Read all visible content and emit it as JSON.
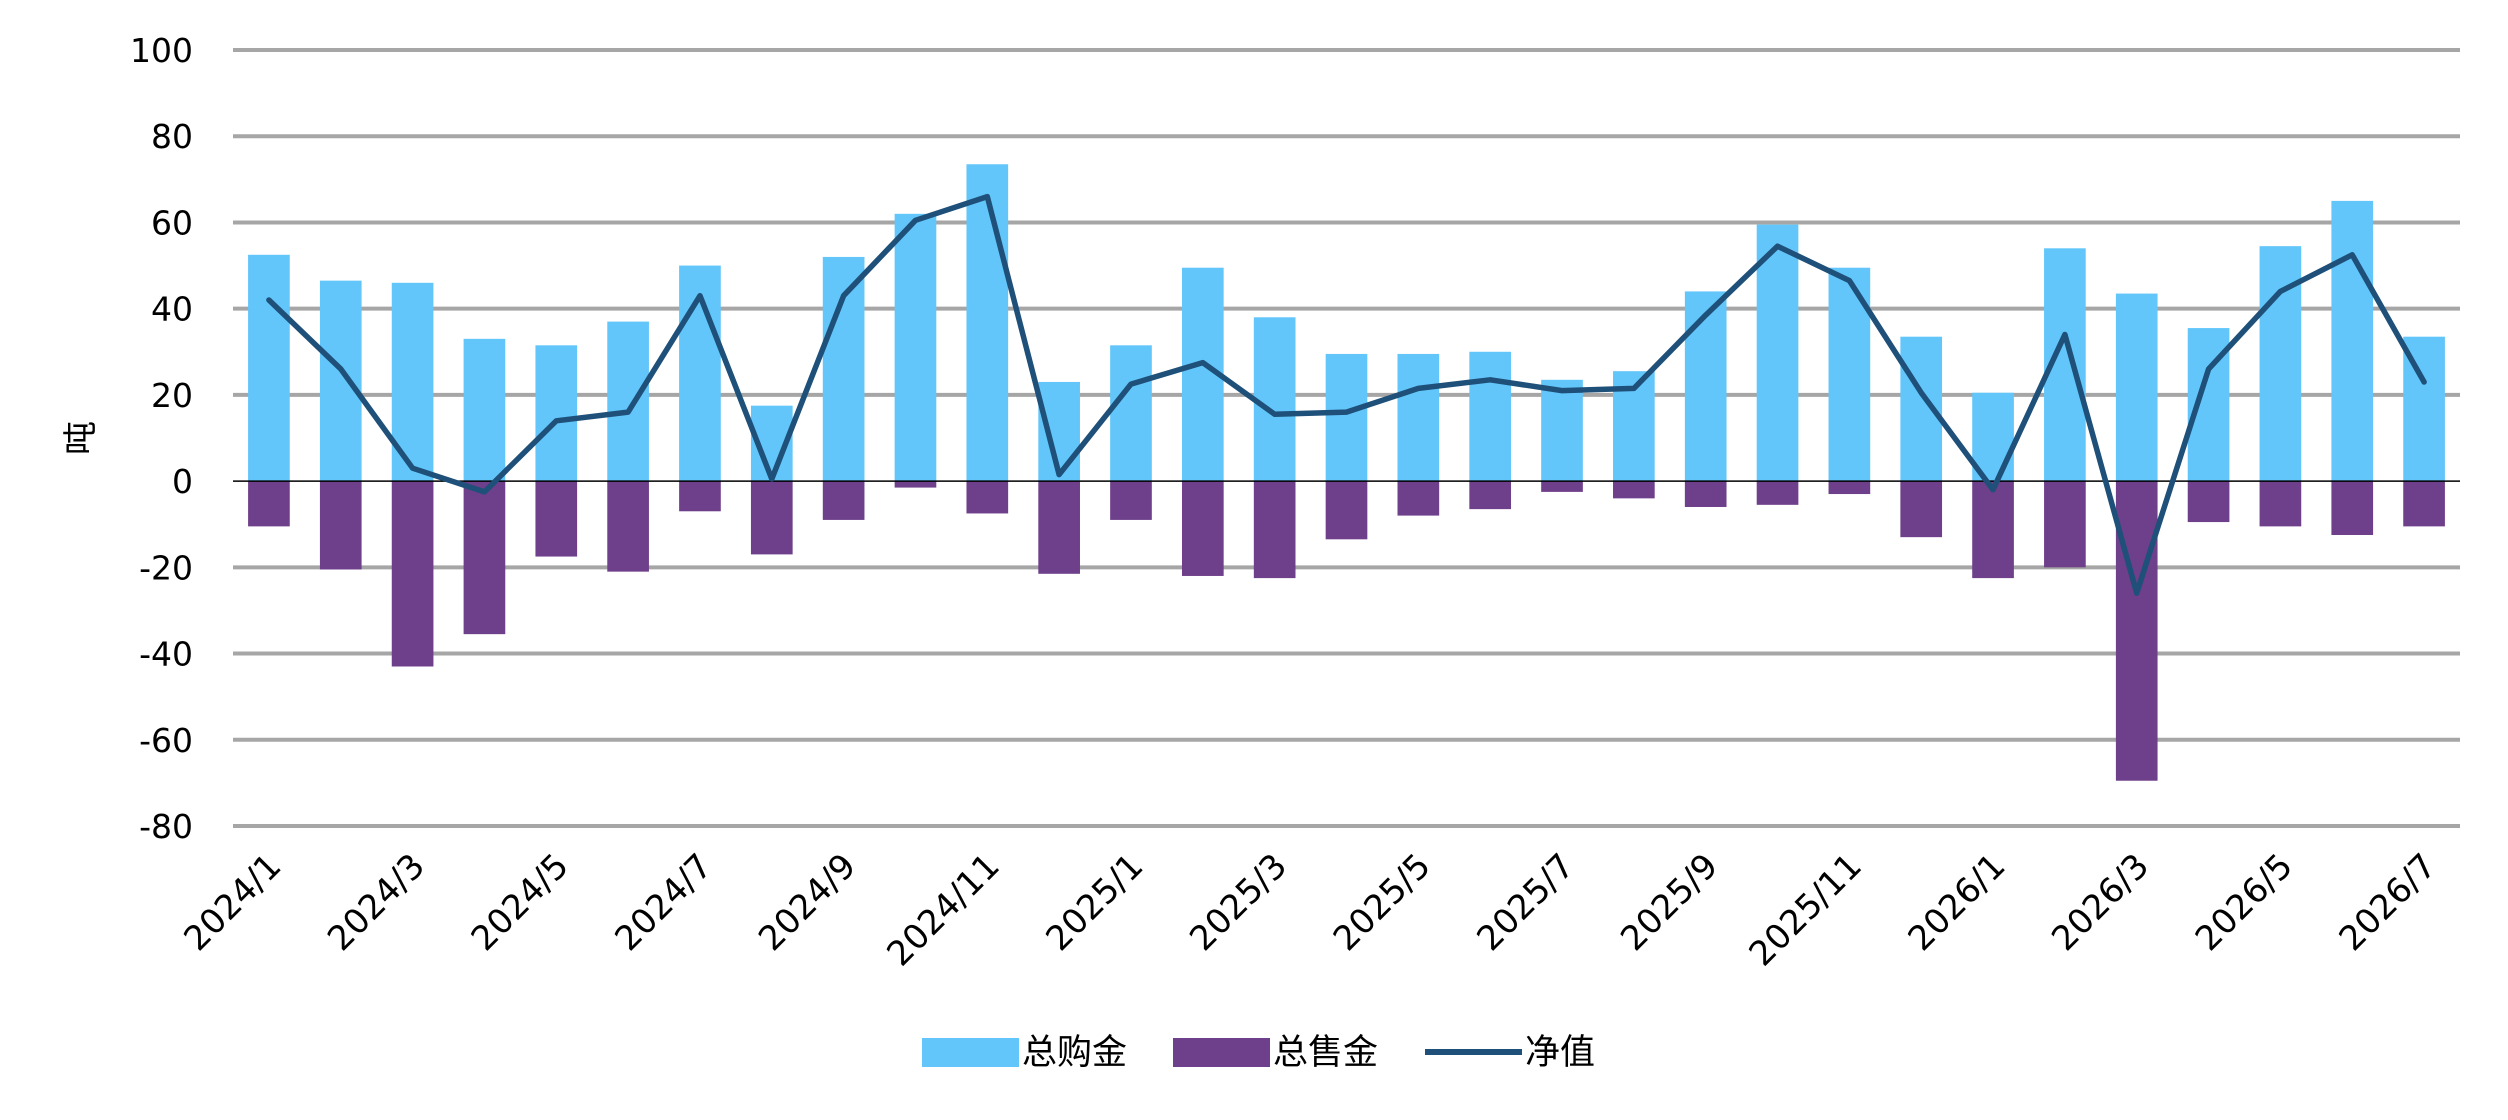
{
  "chart_data": {
    "type": "bar",
    "ylabel": "吨",
    "ylim": [
      -80,
      100
    ],
    "yticks": [
      100,
      80,
      60,
      40,
      20,
      0,
      -20,
      -40,
      -60,
      -80
    ],
    "grid": true,
    "legend_position": "bottom",
    "x": [
      "2024/1",
      "2024/2",
      "2024/3",
      "2024/4",
      "2024/5",
      "2024/6",
      "2024/7",
      "2024/8",
      "2024/9",
      "2024/10",
      "2024/11",
      "2024/12",
      "2025/1",
      "2025/2",
      "2025/3",
      "2025/4",
      "2025/5",
      "2025/6",
      "2025/7",
      "2025/8",
      "2025/9",
      "2025/10",
      "2025/11",
      "2025/12",
      "2026/1",
      "2026/2",
      "2026/3",
      "2026/4",
      "2026/5",
      "2026/6",
      "2026/7"
    ],
    "tick_labels": [
      "2024/1",
      "2024/3",
      "2024/5",
      "2024/7",
      "2024/9",
      "2024/11",
      "2025/1",
      "2025/3",
      "2025/5",
      "2025/7",
      "2025/9",
      "2025/11",
      "2026/1",
      "2026/3",
      "2026/5",
      "2026/7"
    ],
    "series": [
      {
        "name": "总购金",
        "type": "bar",
        "color": "#62C6FA",
        "values": [
          52.5,
          46.5,
          46,
          33,
          31.5,
          37,
          50,
          17.5,
          52,
          62,
          73.5,
          23,
          31.5,
          49.5,
          38,
          29.5,
          29.5,
          30,
          23.5,
          25.5,
          44,
          59.5,
          49.5,
          33.5,
          20.5,
          54,
          43.5,
          35.5,
          54.5,
          65,
          33.5
        ]
      },
      {
        "name": "总售金",
        "type": "bar",
        "color": "#6E3F8A",
        "values": [
          -10.5,
          -20.5,
          -43,
          -35.5,
          -17.5,
          -21,
          -7,
          -17,
          -9,
          -1.5,
          -7.5,
          -21.5,
          -9,
          -22,
          -22.5,
          -13.5,
          -8,
          -6.5,
          -2.5,
          -4,
          -6,
          -5.5,
          -3,
          -13,
          -22.5,
          -20,
          -69.5,
          -9.5,
          -10.5,
          -12.5,
          -10.5
        ]
      },
      {
        "name": "净值",
        "type": "line",
        "color": "#1E5079",
        "values": [
          42,
          26,
          3,
          -2.5,
          14,
          16,
          43,
          0.5,
          43,
          60.5,
          66,
          1.5,
          22.5,
          27.5,
          15.5,
          16,
          21.5,
          23.5,
          21,
          21.5,
          38.5,
          54.5,
          46.5,
          20.5,
          -2,
          34,
          -26,
          26,
          44,
          52.5,
          23
        ]
      }
    ]
  }
}
